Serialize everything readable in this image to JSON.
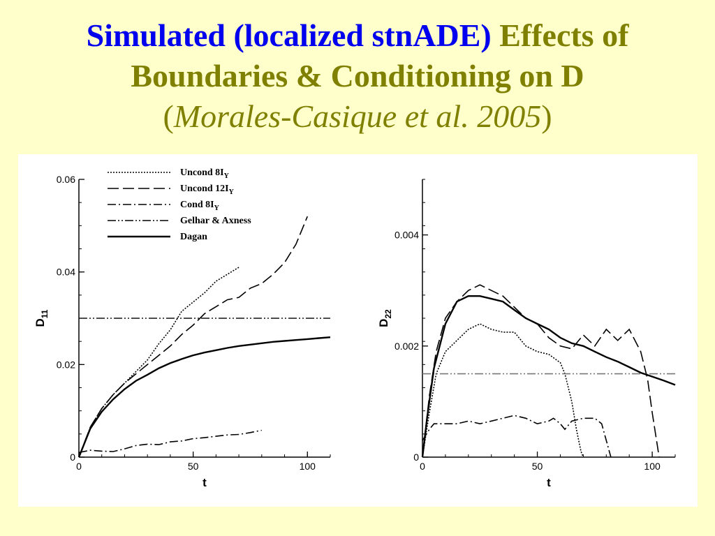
{
  "title": {
    "line1_blue": "Simulated (localized stnADE)",
    "line1_olive": "Effects of",
    "line2": "Boundaries & Conditioning on D",
    "line3_open": "(",
    "line3_cite": "Morales-Casique et al. 2005",
    "line3_close": ")"
  },
  "chart_data": [
    {
      "type": "line",
      "ylabel_main": "D",
      "ylabel_sub": "11",
      "xlabel": "t",
      "xlim": [
        0,
        110
      ],
      "ylim": [
        0,
        0.06
      ],
      "xticks": [
        {
          "v": 0,
          "label": "0"
        },
        {
          "v": 50,
          "label": "50"
        },
        {
          "v": 100,
          "label": "100"
        }
      ],
      "yticks": [
        {
          "v": 0,
          "label": "0"
        },
        {
          "v": 0.02,
          "label": "0.02"
        },
        {
          "v": 0.04,
          "label": "0.04"
        },
        {
          "v": 0.06,
          "label": "0.06"
        }
      ],
      "legend": [
        {
          "key": "unc8",
          "main": "Uncond 8I",
          "sub": "Y"
        },
        {
          "key": "unc12",
          "main": "Uncond 12I",
          "sub": "Y"
        },
        {
          "key": "cond8",
          "main": "Cond 8I",
          "sub": "Y"
        },
        {
          "key": "gelhar",
          "main": "Gelhar & Axness",
          "sub": ""
        },
        {
          "key": "dagan",
          "main": "Dagan",
          "sub": ""
        }
      ],
      "series": [
        {
          "key": "unc8",
          "x": [
            0,
            5,
            10,
            15,
            20,
            25,
            30,
            35,
            40,
            45,
            50,
            55,
            60,
            65,
            70
          ],
          "y": [
            0,
            0.0065,
            0.0105,
            0.0135,
            0.016,
            0.0185,
            0.021,
            0.0245,
            0.0275,
            0.0315,
            0.0335,
            0.0355,
            0.038,
            0.0395,
            0.041
          ]
        },
        {
          "key": "unc12",
          "x": [
            0,
            5,
            10,
            15,
            20,
            25,
            30,
            35,
            40,
            45,
            50,
            55,
            60,
            65,
            70,
            75,
            80,
            85,
            90,
            95,
            100
          ],
          "y": [
            0,
            0.0065,
            0.0105,
            0.0135,
            0.016,
            0.018,
            0.02,
            0.022,
            0.024,
            0.0265,
            0.0285,
            0.031,
            0.0325,
            0.034,
            0.0345,
            0.0365,
            0.0375,
            0.0395,
            0.042,
            0.046,
            0.052
          ]
        },
        {
          "key": "cond8",
          "x": [
            0,
            5,
            10,
            15,
            20,
            25,
            30,
            35,
            40,
            45,
            50,
            55,
            60,
            65,
            70,
            75,
            80
          ],
          "y": [
            0.001,
            0.0015,
            0.0013,
            0.0012,
            0.0018,
            0.0025,
            0.0028,
            0.0027,
            0.0033,
            0.0035,
            0.004,
            0.0042,
            0.0045,
            0.0048,
            0.0049,
            0.0053,
            0.0058
          ]
        },
        {
          "key": "gelhar",
          "x": [
            0,
            110
          ],
          "y": [
            0.03,
            0.03
          ]
        },
        {
          "key": "dagan",
          "x": [
            0,
            5,
            10,
            15,
            20,
            25,
            30,
            35,
            40,
            45,
            50,
            55,
            60,
            65,
            70,
            75,
            80,
            85,
            90,
            95,
            100,
            105,
            110
          ],
          "y": [
            0,
            0.0062,
            0.0098,
            0.0125,
            0.0147,
            0.0165,
            0.0178,
            0.0192,
            0.0203,
            0.0212,
            0.022,
            0.0226,
            0.0231,
            0.0236,
            0.024,
            0.0243,
            0.0246,
            0.0249,
            0.0251,
            0.0253,
            0.0255,
            0.0257,
            0.0259
          ]
        }
      ]
    },
    {
      "type": "line",
      "ylabel_main": "D",
      "ylabel_sub": "22",
      "xlabel": "t",
      "xlim": [
        0,
        110
      ],
      "ylim": [
        0,
        0.005
      ],
      "xticks": [
        {
          "v": 0,
          "label": "0"
        },
        {
          "v": 50,
          "label": "50"
        },
        {
          "v": 100,
          "label": "100"
        }
      ],
      "yticks": [
        {
          "v": 0,
          "label": "0"
        },
        {
          "v": 0.002,
          "label": "0.002"
        },
        {
          "v": 0.004,
          "label": "0.004"
        }
      ],
      "series": [
        {
          "key": "unc8",
          "x": [
            0,
            3,
            6,
            10,
            15,
            20,
            25,
            30,
            35,
            40,
            45,
            50,
            55,
            60,
            62,
            65,
            67,
            69,
            70
          ],
          "y": [
            0,
            0.0008,
            0.0015,
            0.0019,
            0.0021,
            0.0023,
            0.0024,
            0.0023,
            0.00225,
            0.00225,
            0.002,
            0.0019,
            0.00185,
            0.0017,
            0.0015,
            0.001,
            0.0005,
            0.0001,
            0
          ]
        },
        {
          "key": "unc12",
          "x": [
            0,
            3,
            6,
            10,
            15,
            20,
            25,
            30,
            35,
            40,
            45,
            50,
            55,
            60,
            65,
            70,
            75,
            80,
            85,
            90,
            95,
            98,
            100,
            103
          ],
          "y": [
            0,
            0.0011,
            0.0019,
            0.0025,
            0.0028,
            0.003,
            0.0031,
            0.003,
            0.0029,
            0.0027,
            0.0025,
            0.0024,
            0.00215,
            0.002,
            0.00195,
            0.0022,
            0.002,
            0.0023,
            0.0021,
            0.0023,
            0.0019,
            0.0014,
            0.0008,
            0
          ]
        },
        {
          "key": "cond8",
          "x": [
            0,
            3,
            5,
            10,
            15,
            20,
            25,
            30,
            35,
            40,
            45,
            50,
            55,
            57,
            60,
            62,
            65,
            70,
            75,
            78,
            80,
            82
          ],
          "y": [
            0.0003,
            0.0005,
            0.0006,
            0.0006,
            0.0006,
            0.00065,
            0.0006,
            0.00065,
            0.0007,
            0.00075,
            0.0007,
            0.0006,
            0.00065,
            0.0007,
            0.0006,
            0.0005,
            0.00065,
            0.0007,
            0.0007,
            0.0006,
            0.0003,
            0
          ]
        },
        {
          "key": "gelhar",
          "x": [
            0,
            110
          ],
          "y": [
            0.0015,
            0.0015
          ]
        },
        {
          "key": "dagan",
          "x": [
            0,
            2,
            5,
            10,
            15,
            20,
            25,
            30,
            35,
            40,
            45,
            50,
            55,
            60,
            65,
            70,
            75,
            80,
            85,
            90,
            95,
            100,
            105,
            110
          ],
          "y": [
            0,
            0.0007,
            0.0016,
            0.0024,
            0.0028,
            0.0029,
            0.0029,
            0.00285,
            0.0028,
            0.00265,
            0.0025,
            0.0024,
            0.0023,
            0.00215,
            0.00205,
            0.002,
            0.0019,
            0.0018,
            0.00172,
            0.00162,
            0.00152,
            0.00145,
            0.00138,
            0.0013
          ]
        }
      ]
    }
  ]
}
